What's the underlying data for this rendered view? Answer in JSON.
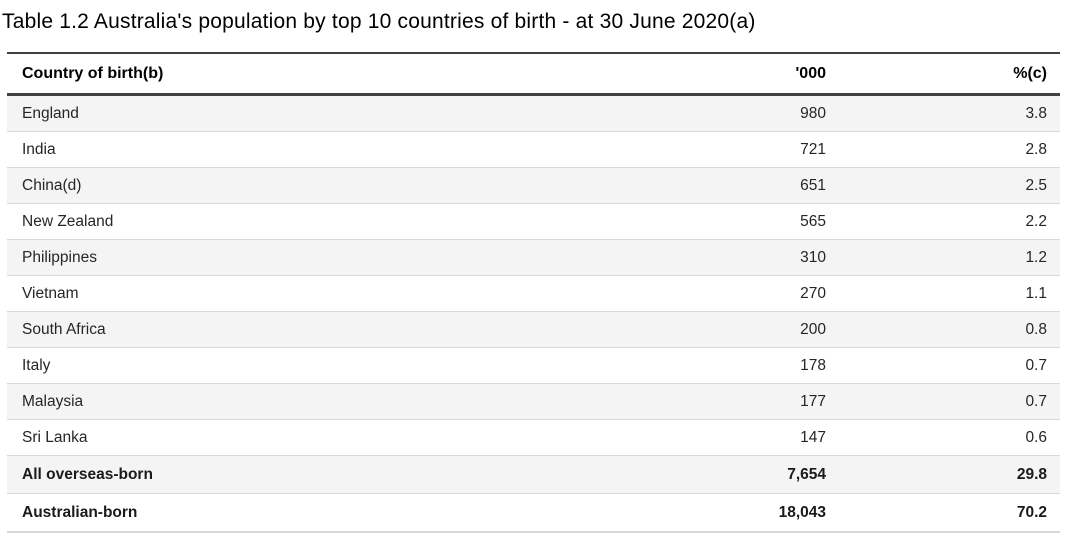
{
  "title": "Table 1.2 Australia's population by top 10 countries of birth - at 30 June 2020(a)",
  "table": {
    "headers": {
      "country": "Country of birth(b)",
      "thousands": "'000",
      "percent": "%(c)"
    },
    "rows": [
      {
        "country": "England",
        "thousands": "980",
        "percent": "3.8"
      },
      {
        "country": "India",
        "thousands": "721",
        "percent": "2.8"
      },
      {
        "country": "China(d)",
        "thousands": "651",
        "percent": "2.5"
      },
      {
        "country": "New Zealand",
        "thousands": "565",
        "percent": "2.2"
      },
      {
        "country": "Philippines",
        "thousands": "310",
        "percent": "1.2"
      },
      {
        "country": "Vietnam",
        "thousands": "270",
        "percent": "1.1"
      },
      {
        "country": "South Africa",
        "thousands": "200",
        "percent": "0.8"
      },
      {
        "country": "Italy",
        "thousands": "178",
        "percent": "0.7"
      },
      {
        "country": "Malaysia",
        "thousands": "177",
        "percent": "0.7"
      },
      {
        "country": "Sri Lanka",
        "thousands": "147",
        "percent": "0.6"
      },
      {
        "country": "All overseas-born",
        "thousands": "7,654",
        "percent": "29.8"
      },
      {
        "country": "Australian-born",
        "thousands": "18,043",
        "percent": "70.2"
      }
    ]
  },
  "colors": {
    "stripe_background": "#f4f4f4",
    "header_border": "#404040",
    "row_separator": "#d9d9d9",
    "body_text": "#262626",
    "title_text": "#000000"
  },
  "chart_data": {
    "type": "table",
    "title": "Table 1.2 Australia's population by top 10 countries of birth - at 30 June 2020(a)",
    "columns": [
      "Country of birth(b)",
      "'000",
      "%(c)"
    ],
    "categories": [
      "England",
      "India",
      "China(d)",
      "New Zealand",
      "Philippines",
      "Vietnam",
      "South Africa",
      "Italy",
      "Malaysia",
      "Sri Lanka",
      "All overseas-born",
      "Australian-born"
    ],
    "series": [
      {
        "name": "'000",
        "values": [
          980,
          721,
          651,
          565,
          310,
          270,
          200,
          178,
          177,
          147,
          7654,
          18043
        ]
      },
      {
        "name": "%(c)",
        "values": [
          3.8,
          2.8,
          2.5,
          2.2,
          1.2,
          1.1,
          0.8,
          0.7,
          0.7,
          0.6,
          29.8,
          70.2
        ]
      }
    ]
  }
}
